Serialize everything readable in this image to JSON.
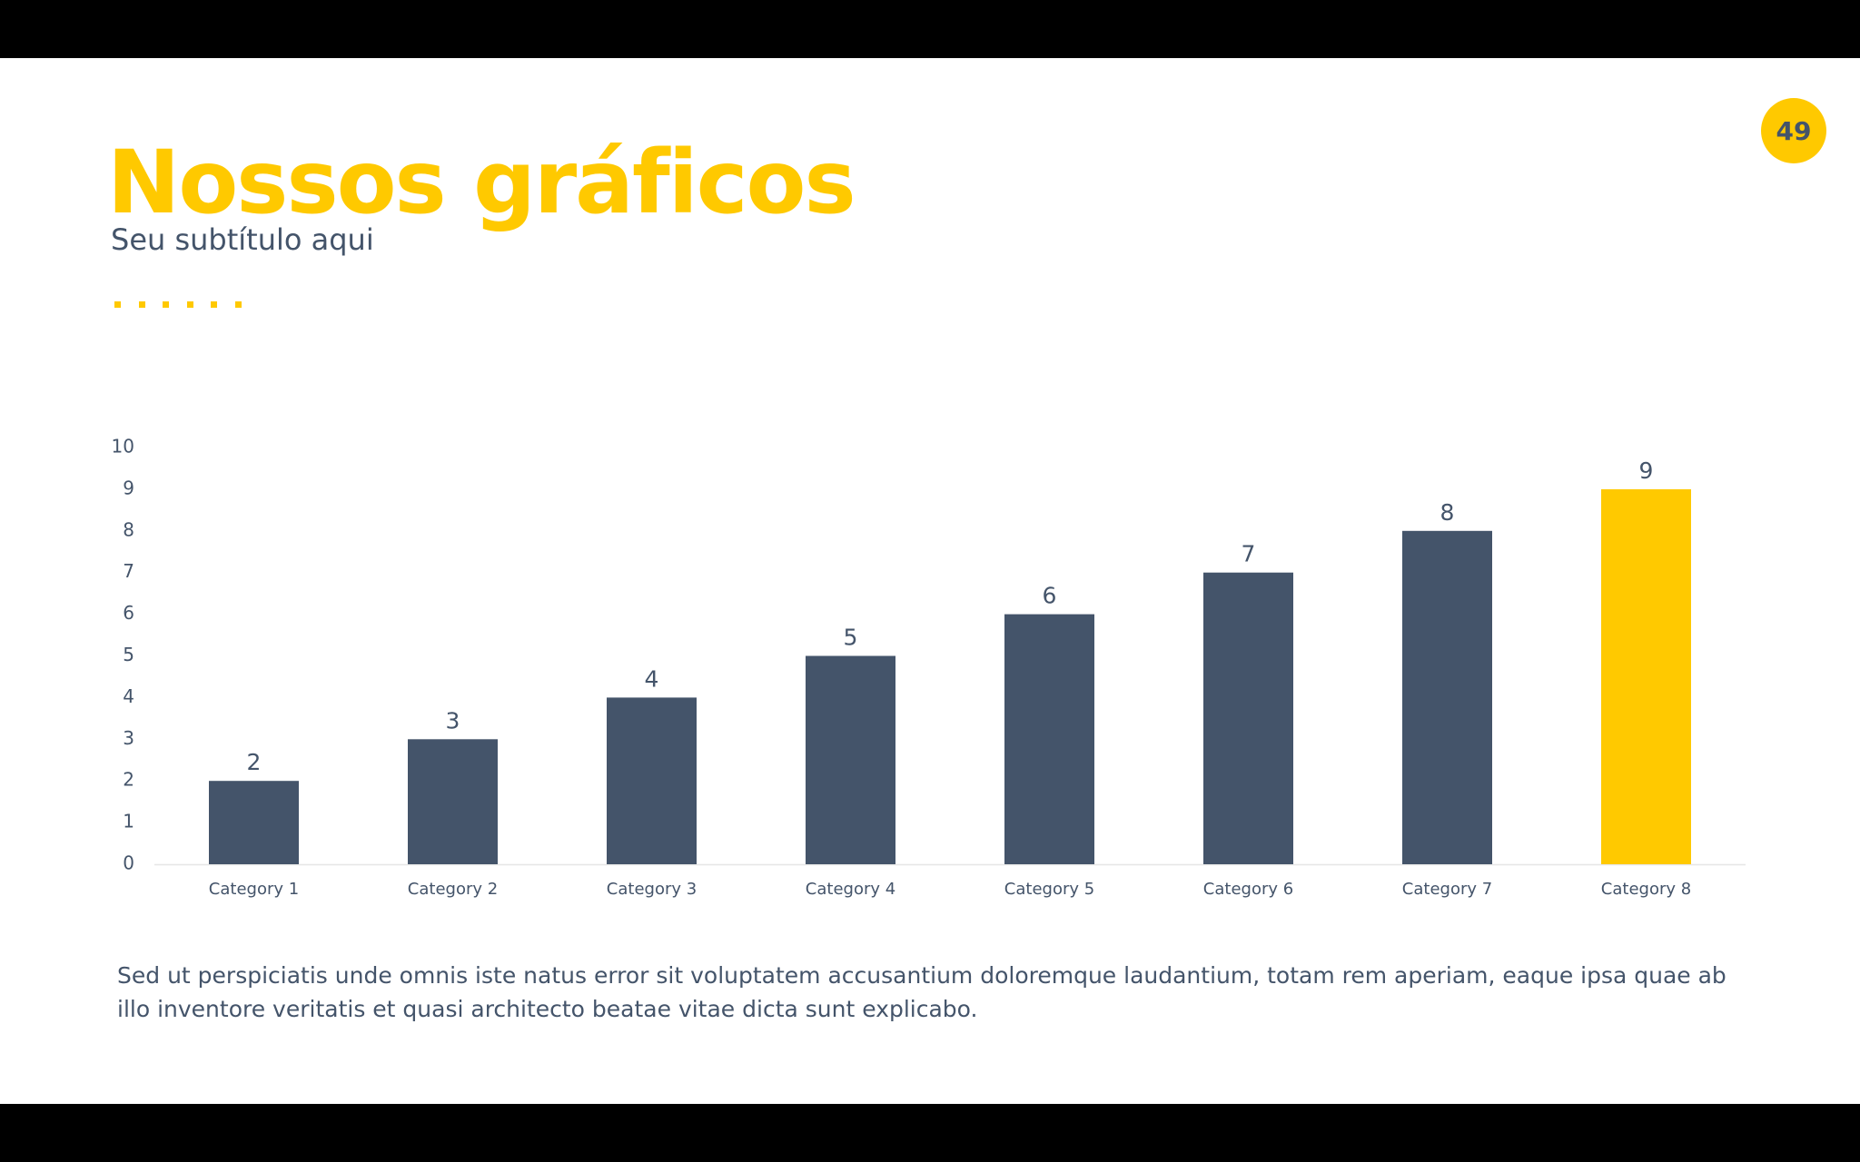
{
  "slide": {
    "title": "Nossos gráficos",
    "subtitle": "Seu subtítulo aqui",
    "page_number": "49",
    "body_text": "Sed ut perspiciatis unde omnis iste natus error sit voluptatem accusantium doloremque laudantium, totam rem aperiam, eaque ipsa quae ab illo inventore veritatis et quasi architecto beatae vitae dicta sunt explicabo."
  },
  "colors": {
    "accent": "#ffc900",
    "bar": "#44546a",
    "text": "#44546a",
    "axis_line": "#e6e6e6"
  },
  "chart_data": {
    "type": "bar",
    "title": "",
    "xlabel": "",
    "ylabel": "",
    "categories": [
      "Category 1",
      "Category 2",
      "Category 3",
      "Category 4",
      "Category 5",
      "Category 6",
      "Category 7",
      "Category 8"
    ],
    "values": [
      2,
      3,
      4,
      5,
      6,
      7,
      8,
      9
    ],
    "highlight_index": 7,
    "ylim": [
      0,
      10
    ],
    "yticks": [
      0,
      1,
      2,
      3,
      4,
      5,
      6,
      7,
      8,
      9,
      10
    ],
    "data_labels": true,
    "grid": false,
    "legend": "none"
  }
}
